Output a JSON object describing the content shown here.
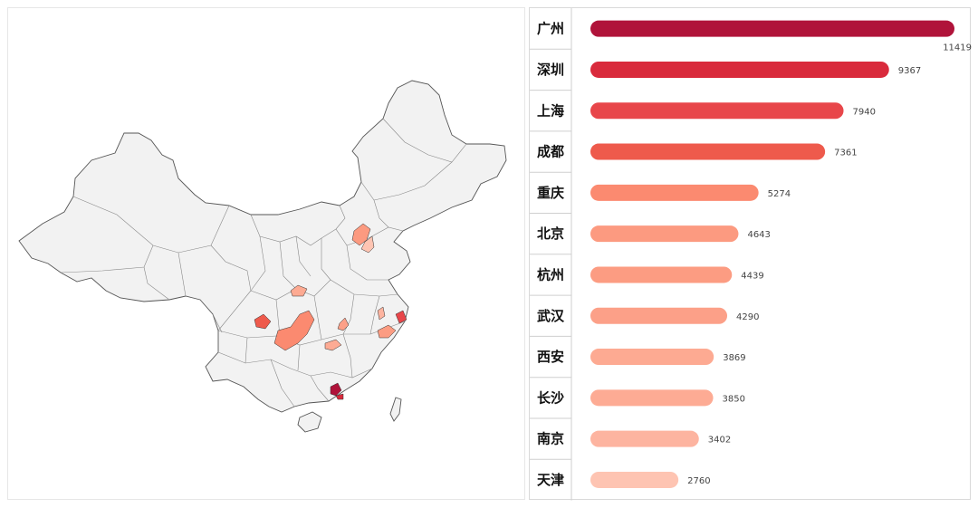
{
  "chart_data": {
    "type": "bar",
    "orientation": "horizontal",
    "categories": [
      "广州",
      "深圳",
      "上海",
      "成都",
      "重庆",
      "北京",
      "杭州",
      "武汉",
      "西安",
      "长沙",
      "南京",
      "天津"
    ],
    "values": [
      11419,
      9367,
      7940,
      7361,
      5274,
      4643,
      4439,
      4290,
      3869,
      3850,
      3402,
      2760
    ],
    "colors": [
      "#b0133a",
      "#d92a3c",
      "#e8464a",
      "#ee5a4c",
      "#fb8a70",
      "#fc9a80",
      "#fc9c82",
      "#fca088",
      "#fdaa92",
      "#fdab94",
      "#fdb4a0",
      "#fec4b2"
    ],
    "xlim": [
      0,
      11419
    ],
    "grid": false,
    "legend": "none"
  },
  "map": {
    "base_fill": "#f2f2f2",
    "stroke": "#555555",
    "highlight_colors": {
      "广州": "#b0133a",
      "深圳": "#d92a3c",
      "上海": "#e8464a",
      "成都": "#ee5a4c",
      "重庆": "#fb8a70",
      "北京": "#fc9a80",
      "杭州": "#fc9c82",
      "武汉": "#fca088",
      "西安": "#fdaa92",
      "长沙": "#fdab94",
      "南京": "#fdb4a0",
      "天津": "#fec4b2"
    }
  }
}
